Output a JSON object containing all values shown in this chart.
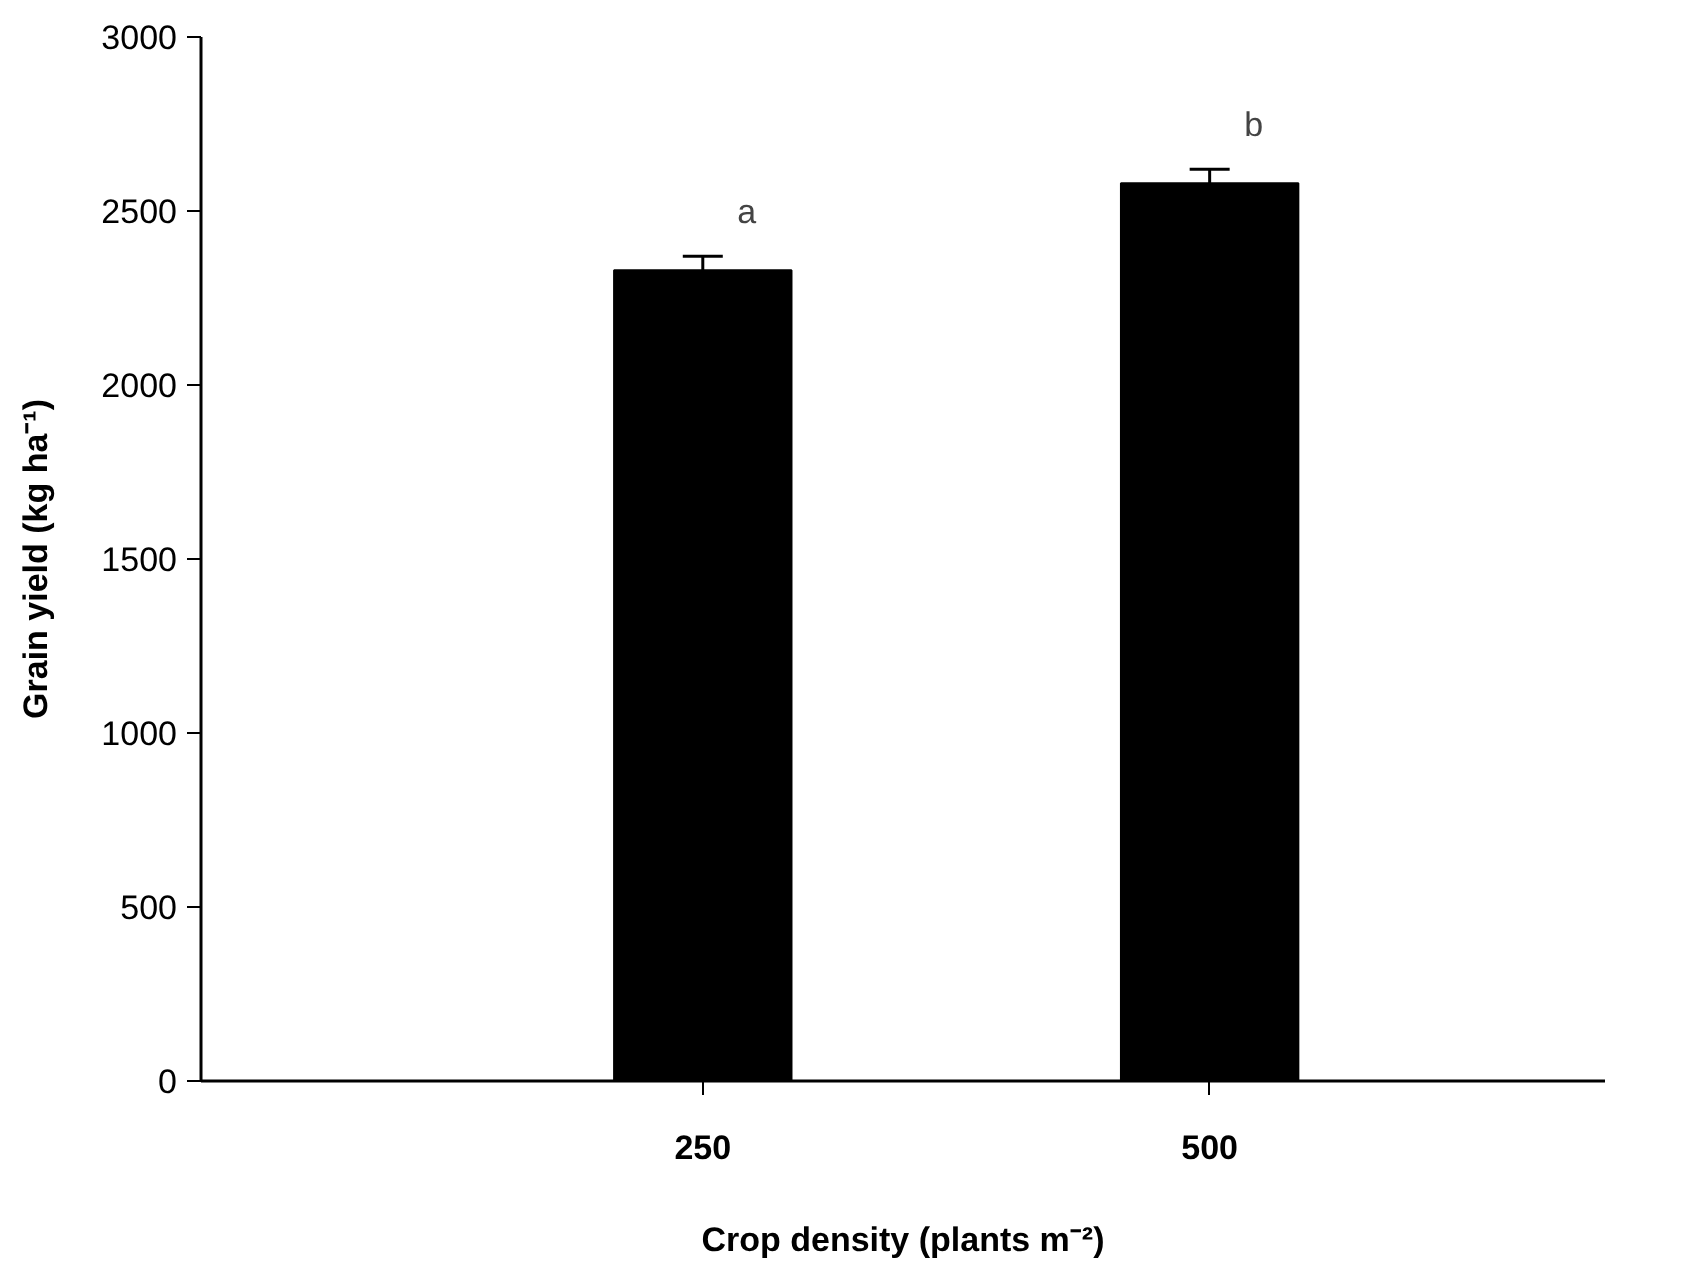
{
  "chart_data": {
    "type": "bar",
    "categories": [
      "250",
      "500"
    ],
    "values": [
      2330,
      2580
    ],
    "errors": [
      40,
      40
    ],
    "color": "#000000",
    "xlabel": "Crop density (plants m⁻²)",
    "ylabel": "Grain yield (kg ha⁻¹)",
    "ylim": [
      0,
      3000
    ],
    "yticks": [
      0,
      500,
      1000,
      1500,
      2000,
      2500,
      3000
    ],
    "grid": false,
    "annotations": [
      "a",
      "b"
    ]
  }
}
